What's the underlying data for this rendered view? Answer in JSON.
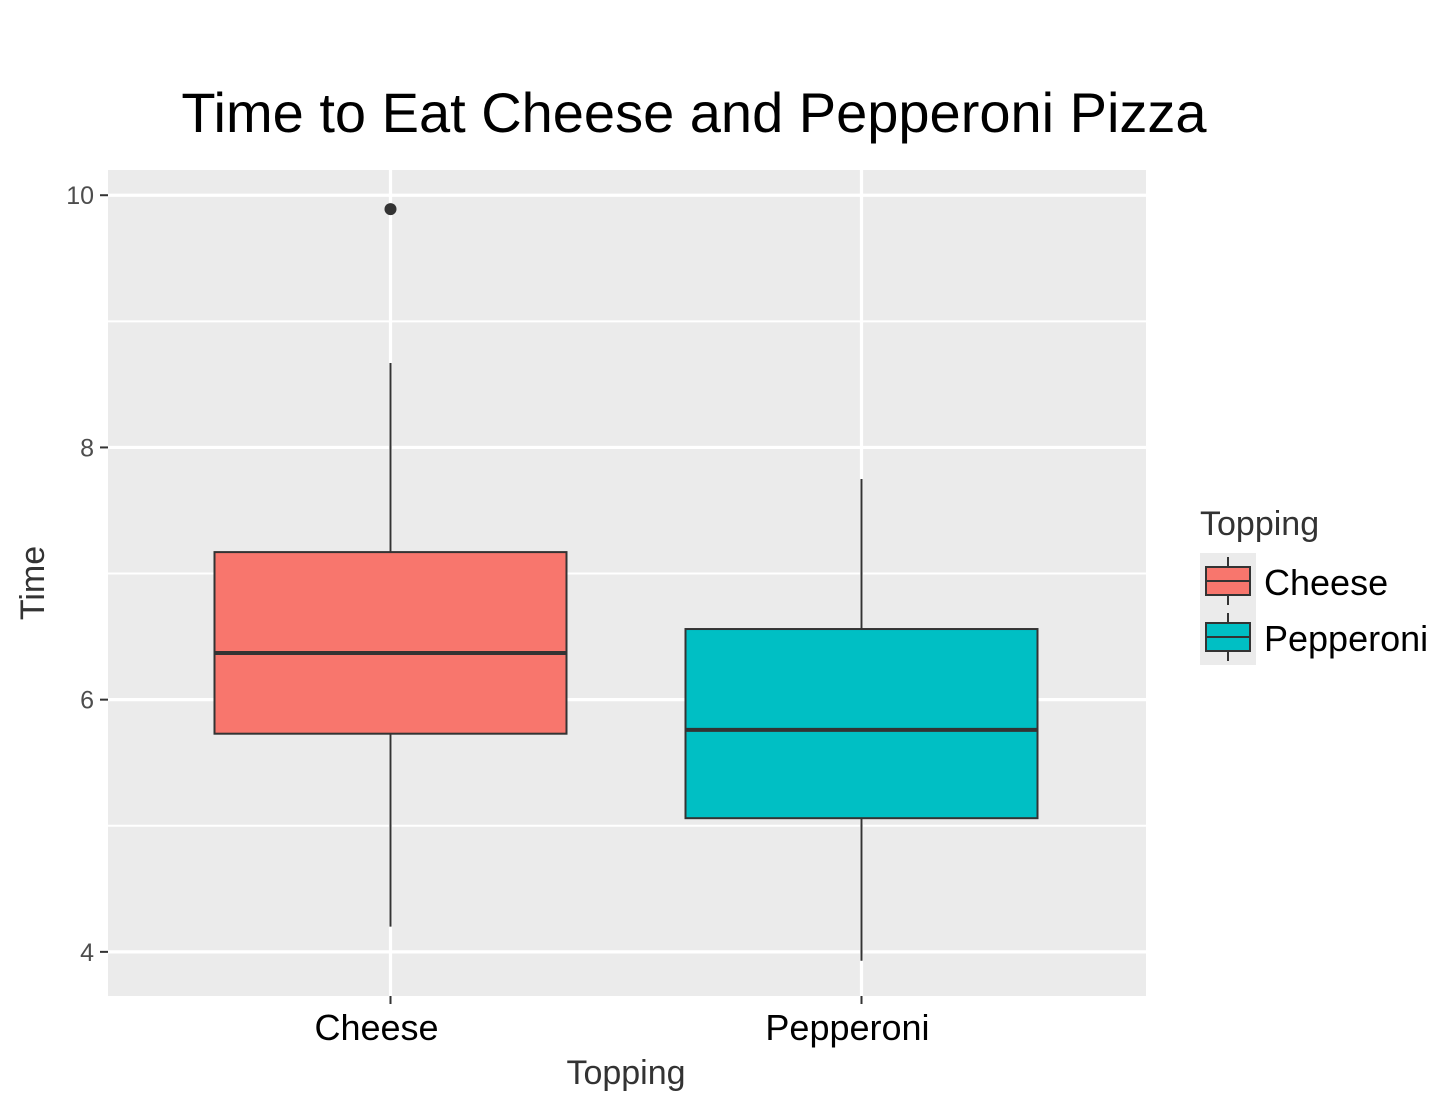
{
  "chart_data": {
    "type": "box",
    "title": "Time to Eat Cheese and Pepperoni Pizza",
    "xlabel": "Topping",
    "ylabel": "Time",
    "ylim": [
      3.65,
      10.2
    ],
    "yticks": [
      4,
      6,
      8,
      10
    ],
    "categories": [
      "Cheese",
      "Pepperoni"
    ],
    "series": [
      {
        "name": "Cheese",
        "color": "#F8766D",
        "min": 4.2,
        "q1": 5.73,
        "median": 6.37,
        "q3": 7.17,
        "max": 8.67,
        "outliers": [
          9.89
        ]
      },
      {
        "name": "Pepperoni",
        "color": "#00BFC4",
        "min": 3.93,
        "q1": 5.06,
        "median": 5.76,
        "q3": 6.56,
        "max": 7.75,
        "outliers": []
      }
    ],
    "legend": {
      "title": "Topping",
      "position": "right"
    },
    "panel_color": "#EBEBEB",
    "grid": true
  }
}
